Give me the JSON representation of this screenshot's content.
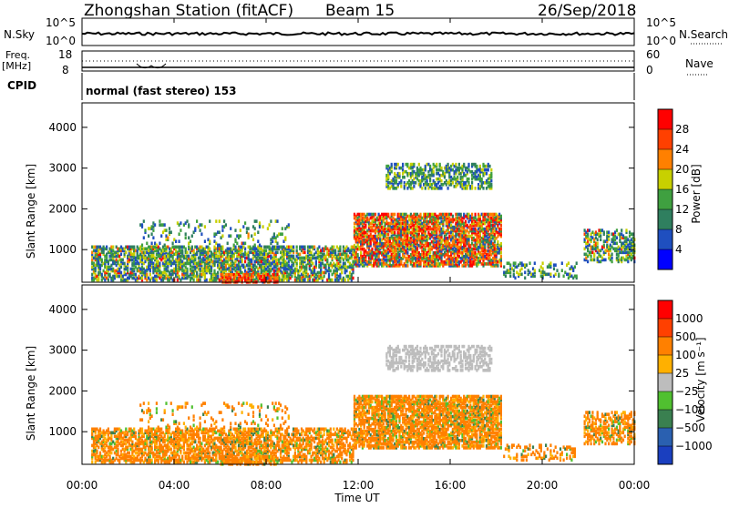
{
  "header": {
    "station": "Zhongshan Station (fitACF)",
    "beam": "Beam 15",
    "date": "26/Sep/2018"
  },
  "noise_panel": {
    "left_label": "N.Sky",
    "right_label": "N.Search",
    "left_ticks": [
      "10^5",
      "10^0"
    ],
    "right_ticks": [
      "10^5",
      "10^0"
    ]
  },
  "freq_panel": {
    "left_label_1": "Freq.",
    "left_label_2": "[MHz]",
    "right_label": "Nave",
    "left_ticks": [
      "18",
      "8"
    ],
    "right_ticks": [
      "60",
      "0"
    ]
  },
  "cpid": {
    "label": "CPID",
    "value": "normal (fast stereo) 153"
  },
  "chart_data": [
    {
      "type": "heatmap",
      "ylabel": "Slant Range [km]",
      "ylim": [
        200,
        4600
      ],
      "yticks": [
        "4000",
        "3000",
        "2000",
        "1000"
      ],
      "x_ticks": [
        "00:00",
        "04:00",
        "08:00",
        "12:00",
        "16:00",
        "20:00",
        "00:00"
      ],
      "colorbar_label": "Power [dB]",
      "colorbar_ticks": [
        "28",
        "24",
        "20",
        "16",
        "12",
        "8",
        "4"
      ],
      "colors": [
        "#0000ff",
        "#1f4fbf",
        "#2f7f5f",
        "#3fa040",
        "#c8d000",
        "#ff8000",
        "#ff4000",
        "#ff0000"
      ]
    },
    {
      "type": "heatmap",
      "ylabel": "Slant Range [km]",
      "ylim": [
        200,
        4600
      ],
      "yticks": [
        "4000",
        "3000",
        "2000",
        "1000"
      ],
      "xlabel": "Time UT",
      "x_ticks": [
        "00:00",
        "04:00",
        "08:00",
        "12:00",
        "16:00",
        "20:00",
        "00:00"
      ],
      "colorbar_label": "Velocity [m s⁻¹]",
      "colorbar_ticks": [
        "1000",
        "500",
        "100",
        "25",
        "−25",
        "−100",
        "−500",
        "−1000"
      ],
      "colors": [
        "#1a3fbf",
        "#2a60b0",
        "#3a8050",
        "#50c030",
        "#bdbdbd",
        "#ffb000",
        "#ff8000",
        "#ff4000",
        "#ff0000"
      ]
    }
  ]
}
